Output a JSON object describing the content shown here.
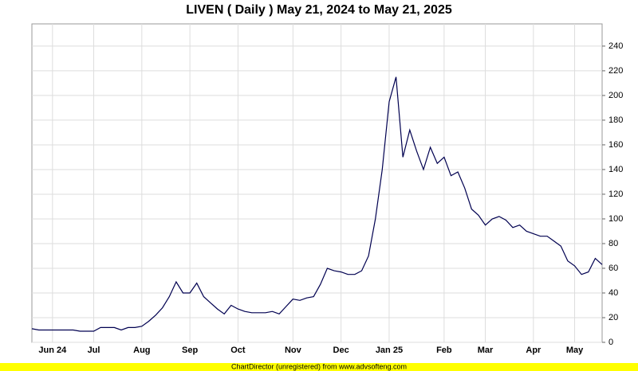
{
  "chart_data": {
    "type": "line",
    "title": "LIVEN ( Daily ) May 21, 2024 to May 21, 2025",
    "credit": "ChartDirector (unregistered) from www.advsofteng.com",
    "categories": [
      null,
      null,
      null,
      "Jun 24",
      null,
      null,
      null,
      null,
      null,
      "Jul",
      null,
      null,
      null,
      null,
      null,
      null,
      "Aug",
      null,
      null,
      null,
      null,
      null,
      null,
      "Sep",
      null,
      null,
      null,
      null,
      null,
      null,
      "Oct",
      null,
      null,
      null,
      null,
      null,
      null,
      null,
      "Nov",
      null,
      null,
      null,
      null,
      null,
      null,
      "Dec",
      null,
      null,
      null,
      null,
      null,
      null,
      "Jan 25",
      null,
      null,
      null,
      null,
      null,
      null,
      null,
      "Feb",
      null,
      null,
      null,
      null,
      null,
      "Mar",
      null,
      null,
      null,
      null,
      null,
      null,
      "Apr",
      null,
      null,
      null,
      null,
      null,
      "May",
      null,
      null,
      null,
      null
    ],
    "series": [
      {
        "color": "#000050",
        "values": [
          11,
          10,
          10,
          10,
          10,
          10,
          10,
          9,
          9,
          9,
          12,
          12,
          12,
          10,
          12,
          12,
          13,
          17,
          22,
          28,
          37,
          49,
          40,
          40,
          48,
          37,
          32,
          27,
          23,
          30,
          27,
          25,
          24,
          24,
          24,
          25,
          23,
          29,
          35,
          34,
          36,
          37,
          47,
          60,
          58,
          57,
          55,
          55,
          58,
          70,
          100,
          140,
          195,
          215,
          150,
          172,
          155,
          140,
          158,
          145,
          150,
          135,
          138,
          125,
          108,
          103,
          95,
          100,
          102,
          99,
          93,
          95,
          90,
          88,
          86,
          86,
          82,
          78,
          66,
          62,
          55,
          57,
          68,
          63
        ]
      }
    ],
    "ylim": [
      0,
      258
    ],
    "yticks": [
      0,
      20,
      40,
      60,
      80,
      100,
      120,
      140,
      160,
      180,
      200,
      220,
      240
    ],
    "grid": true
  }
}
